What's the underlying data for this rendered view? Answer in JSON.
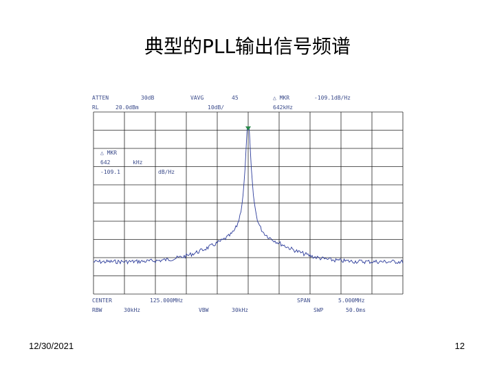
{
  "title": "典型的PLL输出信号频谱",
  "analyzer": {
    "top_row1": [
      "ATTEN",
      "30dB",
      "VAVG",
      "45",
      "△ MKR",
      "-109.1dB/Hz"
    ],
    "top_row2": [
      "RL",
      "20.0dBm",
      "10dB/",
      "642kHz"
    ],
    "marker_box": [
      "△ MKR",
      "642",
      "kHz",
      "-109.1",
      "dB/Hz"
    ],
    "bottom_row1": [
      "CENTER",
      "125.000MHz",
      "SPAN",
      "5.000MHz"
    ],
    "bottom_row2": [
      "RBW",
      "30kHz",
      "VBW",
      "30kHz",
      "SWP",
      "50.0ms"
    ]
  },
  "footer": {
    "date": "12/30/2021",
    "page": "12"
  }
}
